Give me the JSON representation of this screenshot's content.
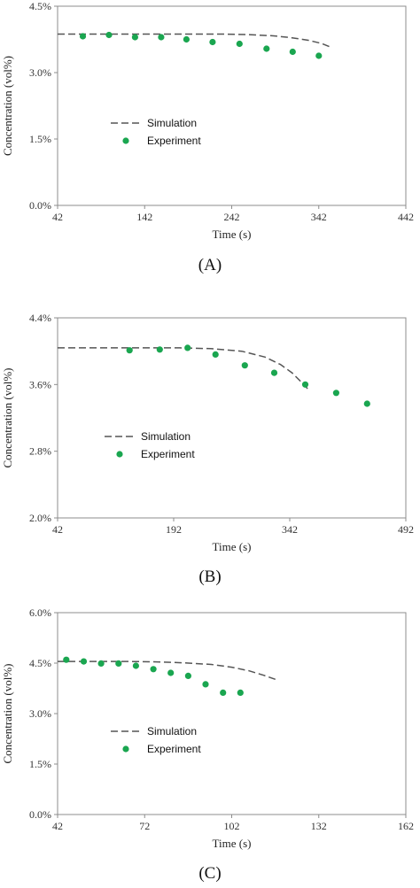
{
  "chart_data": [
    {
      "type": "scatter",
      "panel_label": "(A)",
      "xlabel": "Time (s)",
      "ylabel": "Concentration (vol%)",
      "xlim": [
        42,
        442
      ],
      "ylim": [
        0,
        4.5
      ],
      "x_ticks": [
        "42",
        "142",
        "242",
        "342",
        "442"
      ],
      "y_ticks": [
        "0.0%",
        "1.5%",
        "3.0%",
        "4.5%"
      ],
      "legend_position": "middle-left",
      "series": [
        {
          "name": "Simulation",
          "style": "dashed-line",
          "color": "#555555",
          "x": [
            42,
            100,
            150,
            200,
            230,
            260,
            290,
            310,
            330,
            345,
            355
          ],
          "y": [
            3.87,
            3.87,
            3.87,
            3.87,
            3.87,
            3.86,
            3.83,
            3.79,
            3.73,
            3.66,
            3.58
          ]
        },
        {
          "name": "Experiment",
          "style": "markers",
          "color": "#1aa650",
          "x": [
            71,
            101,
            131,
            161,
            190,
            220,
            251,
            282,
            312,
            342
          ],
          "y": [
            3.82,
            3.85,
            3.8,
            3.8,
            3.75,
            3.69,
            3.65,
            3.54,
            3.47,
            3.38
          ]
        }
      ]
    },
    {
      "type": "scatter",
      "panel_label": "(B)",
      "xlabel": "Time (s)",
      "ylabel": "Concentration (vol%)",
      "xlim": [
        42,
        492
      ],
      "ylim": [
        2.0,
        4.4
      ],
      "x_ticks": [
        "42",
        "192",
        "342",
        "492"
      ],
      "y_ticks": [
        "2.0%",
        "2.8%",
        "3.6%",
        "4.4%"
      ],
      "legend_position": "middle-left",
      "series": [
        {
          "name": "Simulation",
          "style": "dashed-line",
          "color": "#555555",
          "x": [
            42,
            100,
            150,
            200,
            240,
            280,
            310,
            330,
            345,
            358,
            365
          ],
          "y": [
            4.04,
            4.04,
            4.04,
            4.04,
            4.03,
            4.0,
            3.93,
            3.84,
            3.74,
            3.62,
            3.55
          ]
        },
        {
          "name": "Experiment",
          "style": "markers",
          "color": "#1aa650",
          "x": [
            135,
            174,
            210,
            246,
            284,
            322,
            362,
            402,
            442
          ],
          "y": [
            4.01,
            4.02,
            4.04,
            3.96,
            3.83,
            3.74,
            3.6,
            3.5,
            3.37
          ]
        }
      ]
    },
    {
      "type": "scatter",
      "panel_label": "(C)",
      "xlabel": "Time (s)",
      "ylabel": "Concentration (vol%)",
      "xlim": [
        42,
        162
      ],
      "ylim": [
        0,
        6.0
      ],
      "x_ticks": [
        "42",
        "72",
        "102",
        "132",
        "162"
      ],
      "y_ticks": [
        "0.0%",
        "1.5%",
        "3.0%",
        "4.5%",
        "6.0%"
      ],
      "legend_position": "middle-left",
      "series": [
        {
          "name": "Simulation",
          "style": "dashed-line",
          "color": "#555555",
          "x": [
            42,
            55,
            65,
            75,
            85,
            95,
            102,
            108,
            113,
            118
          ],
          "y": [
            4.55,
            4.55,
            4.55,
            4.54,
            4.51,
            4.46,
            4.38,
            4.27,
            4.14,
            3.99
          ]
        },
        {
          "name": "Experiment",
          "style": "markers",
          "color": "#1aa650",
          "x": [
            45,
            51,
            57,
            63,
            69,
            75,
            81,
            87,
            93,
            99,
            105
          ],
          "y": [
            4.6,
            4.55,
            4.49,
            4.49,
            4.42,
            4.32,
            4.21,
            4.12,
            3.87,
            3.62,
            3.62
          ]
        }
      ]
    }
  ]
}
